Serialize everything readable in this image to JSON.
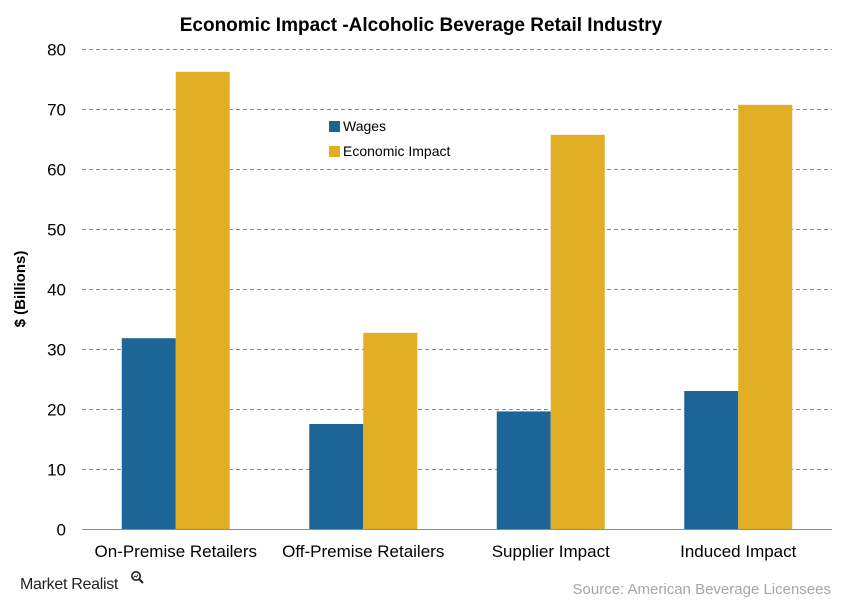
{
  "chart_data": {
    "type": "bar",
    "title": "Economic Impact -Alcoholic Beverage Retail Industry",
    "xlabel": "",
    "ylabel": "$ (Billions)",
    "ylim": [
      0,
      80
    ],
    "yticks": [
      0,
      10,
      20,
      30,
      40,
      50,
      60,
      70,
      80
    ],
    "categories": [
      "On-Premise Retailers",
      "Off-Premise Retailers",
      "Supplier Impact",
      "Induced Impact"
    ],
    "series": [
      {
        "name": "Wages",
        "color": "#1d6596",
        "values": [
          31.8,
          17.5,
          19.6,
          23.0
        ]
      },
      {
        "name": "Economic Impact",
        "color": "#e1ae24",
        "values": [
          76.2,
          32.7,
          65.7,
          70.7
        ]
      }
    ],
    "grid": true,
    "grid_style": "dashed",
    "legend_position": "top-center"
  },
  "brand": {
    "text": "Market Realist",
    "icon": "magnifier-icon"
  },
  "source": "Source: American Beverage Licensees"
}
